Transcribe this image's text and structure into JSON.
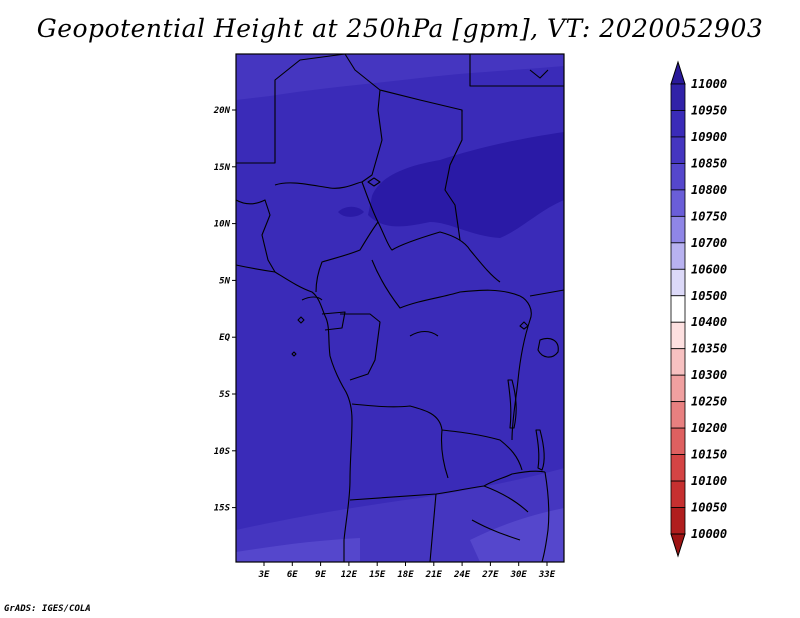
{
  "title": "Geopotential Height at 250hPa [gpm], VT: 2020052903",
  "footer": "GrADS: IGES/COLA",
  "map": {
    "lon_ticks": [
      "3E",
      "6E",
      "9E",
      "12E",
      "15E",
      "18E",
      "21E",
      "24E",
      "27E",
      "30E",
      "33E"
    ],
    "lat_ticks": [
      "20N",
      "15N",
      "10N",
      "5N",
      "EQ",
      "5S",
      "10S",
      "15S"
    ],
    "colors": {
      "base": "#3a2bb8",
      "lighter": "#4a3ac4",
      "darker": "#2a1aa6",
      "boundary": "#000000"
    }
  },
  "colorbar": {
    "labels": [
      "11000",
      "10950",
      "10900",
      "10850",
      "10800",
      "10750",
      "10700",
      "10600",
      "10500",
      "10400",
      "10350",
      "10300",
      "10250",
      "10200",
      "10150",
      "10100",
      "10050",
      "10000"
    ],
    "colors": [
      "#2a1a9a",
      "#3122a8",
      "#3a2bb8",
      "#4536c0",
      "#5547cc",
      "#6a5ed8",
      "#8f86e6",
      "#b8b2f0",
      "#dcd9f8",
      "#ffffff",
      "#fde0e0",
      "#f7c1c1",
      "#f0a0a0",
      "#e88080",
      "#de6060",
      "#d44444",
      "#c63030",
      "#b01e1e",
      "#9e1414"
    ]
  }
}
